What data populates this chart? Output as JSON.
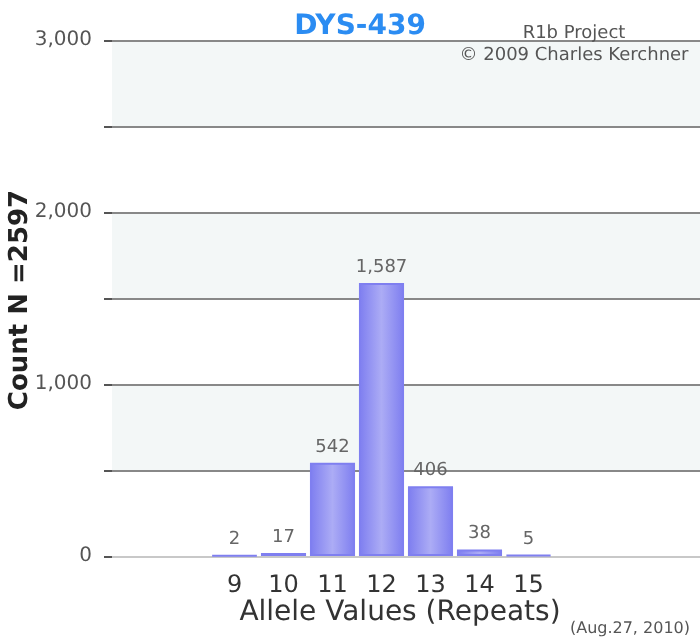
{
  "chart_data": {
    "type": "bar",
    "title": "DYS-439",
    "xlabel": "Allele Values (Repeats)",
    "ylabel": "Count N =2597",
    "annotations": [
      "R1b Project",
      "© 2009 Charles Kerchner",
      "(Aug.27, 2010)"
    ],
    "categories": [
      null,
      null,
      "9",
      "10",
      "11",
      "12",
      "13",
      "14",
      "15",
      null,
      null,
      null
    ],
    "values": [
      null,
      null,
      2,
      17,
      542,
      1587,
      406,
      38,
      5,
      null,
      null,
      null
    ],
    "value_labels": [
      null,
      null,
      "2",
      "17",
      "542",
      "1,587",
      "406",
      "38",
      "5",
      null,
      null,
      null
    ],
    "color": "#7f7ff0",
    "ylim": [
      0,
      3000
    ],
    "yticks": [
      {
        "value": 0,
        "label": "0"
      },
      {
        "value": 500,
        "label": null
      },
      {
        "value": 1000,
        "label": "1,000"
      },
      {
        "value": 1500,
        "label": null
      },
      {
        "value": 2000,
        "label": "2,000"
      },
      {
        "value": 2500,
        "label": null
      },
      {
        "value": 3000,
        "label": "3,000"
      }
    ],
    "grid": "y"
  }
}
